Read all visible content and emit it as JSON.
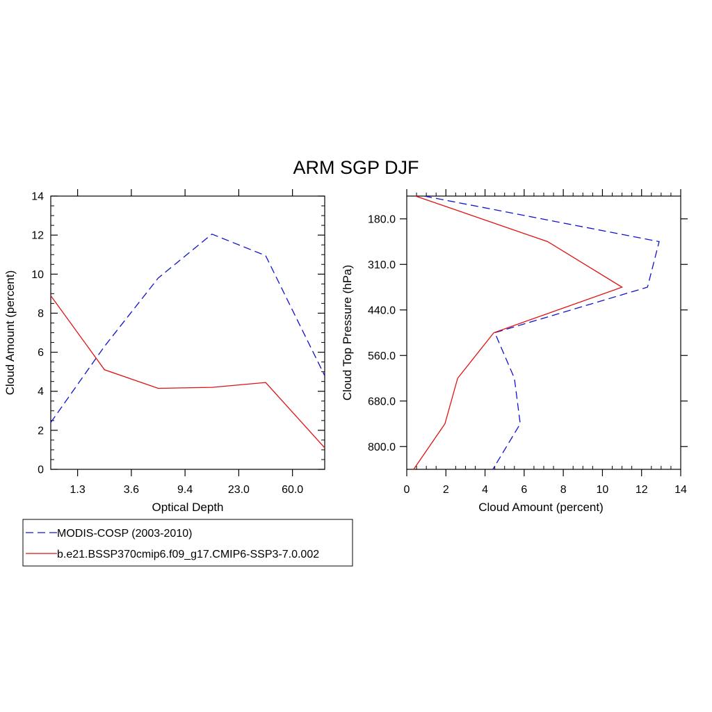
{
  "title": "ARM SGP DJF",
  "colors": {
    "obs": "#1010d0",
    "model": "#e01010",
    "axis": "#000000",
    "background": "#ffffff"
  },
  "legend": {
    "placement": "bottom-left",
    "entries": [
      {
        "label": "MODIS-COSP (2003-2010)",
        "color": "#1010d0",
        "dash": "dashed"
      },
      {
        "label": "b.e21.BSSP370cmip6.f09_g17.CMIP6-SSP3-7.0.002",
        "color": "#e01010",
        "dash": "solid"
      }
    ]
  },
  "chart_data": [
    {
      "type": "line",
      "panel": "left",
      "xlabel": "Optical Depth",
      "ylabel": "Cloud Amount (percent)",
      "x_tick_labels": [
        "1.3",
        "3.6",
        "9.4",
        "23.0",
        "60.0"
      ],
      "x_tick_positions": [
        0.5,
        1.5,
        2.5,
        3.5,
        4.5
      ],
      "xlim": [
        0,
        5.1
      ],
      "x": [
        0,
        1,
        2,
        3,
        4,
        5.1
      ],
      "ylim": [
        0,
        14
      ],
      "y_ticks": [
        0,
        2,
        4,
        6,
        8,
        10,
        12,
        14
      ],
      "series": [
        {
          "name": "MODIS-COSP (2003-2010)",
          "dash": "dashed",
          "color": "#1010d0",
          "values": [
            2.4,
            6.3,
            9.8,
            12.05,
            10.95,
            4.8
          ]
        },
        {
          "name": "b.e21.BSSP370cmip6.f09_g17.CMIP6-SSP3-7.0.002",
          "dash": "solid",
          "color": "#e01010",
          "values": [
            8.9,
            5.1,
            4.15,
            4.2,
            4.45,
            1.1
          ]
        }
      ]
    },
    {
      "type": "line",
      "panel": "right",
      "orientation": "horizontal-profile",
      "xlabel": "Cloud Amount (percent)",
      "ylabel": "Cloud Top Pressure (hPa)",
      "xlim": [
        0,
        14
      ],
      "x_ticks": [
        0,
        2,
        4,
        6,
        8,
        10,
        12,
        14
      ],
      "y_tick_labels": [
        "180.0",
        "310.0",
        "440.0",
        "560.0",
        "680.0",
        "800.0"
      ],
      "y_tick_positions": [
        0.5,
        1.5,
        2.5,
        3.5,
        4.5,
        5.5
      ],
      "ylim": [
        0,
        6
      ],
      "y": [
        0,
        1,
        2,
        3,
        4,
        5,
        6
      ],
      "series": [
        {
          "name": "MODIS-COSP (2003-2010)",
          "dash": "dashed",
          "color": "#1010d0",
          "values": [
            0.9,
            12.9,
            12.3,
            4.5,
            5.5,
            5.8,
            4.4
          ]
        },
        {
          "name": "b.e21.BSSP370cmip6.f09_g17.CMIP6-SSP3-7.0.002",
          "dash": "solid",
          "color": "#e01010",
          "values": [
            0.45,
            7.2,
            11.0,
            4.45,
            2.6,
            1.95,
            0.35
          ]
        }
      ]
    }
  ]
}
